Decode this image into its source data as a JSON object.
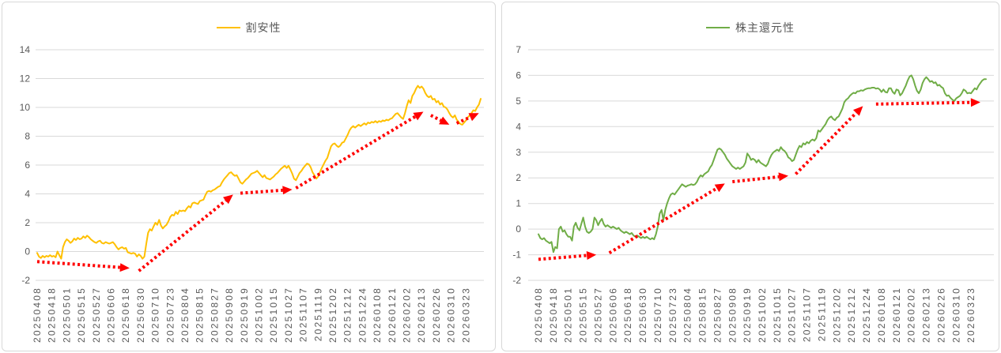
{
  "page": {
    "background": "#FFFFFF",
    "panel_border_color": "#D8D8D8"
  },
  "chart_data": [
    {
      "type": "line",
      "legend": "割安性",
      "legend_position": "top",
      "series_color": "#FFC000",
      "trend_arrow_color": "#FF0000",
      "grid_color": "#D9D9D9",
      "tick_color": "#595959",
      "grid": true,
      "ylim": [
        -2,
        14
      ],
      "y_step": 2,
      "points_per_tick": 8,
      "x_tick_labels": [
        "20250408",
        "20250418",
        "20250501",
        "20250515",
        "20250527",
        "20250606",
        "20250618",
        "20250630",
        "20250710",
        "20250723",
        "20250804",
        "20250815",
        "20250827",
        "20250908",
        "20250919",
        "20251002",
        "20251015",
        "20251027",
        "20251107",
        "20251119",
        "20251202",
        "20251212",
        "20251224",
        "20260108",
        "20260121",
        "20260202",
        "20260213",
        "20260226",
        "20260310",
        "20260323"
      ],
      "values": [
        -0.1,
        -0.35,
        -0.45,
        -0.3,
        -0.4,
        -0.3,
        -0.35,
        -0.25,
        -0.35,
        -0.3,
        -0.4,
        0,
        -0.25,
        -0.5,
        0.3,
        0.65,
        0.85,
        0.75,
        0.6,
        0.7,
        0.9,
        0.8,
        0.95,
        0.85,
        0.9,
        1.05,
        0.95,
        1.1,
        1,
        0.85,
        0.75,
        0.65,
        0.6,
        0.7,
        0.75,
        0.6,
        0.55,
        0.65,
        0.6,
        0.55,
        0.6,
        0.65,
        0.5,
        0.3,
        0.15,
        0.25,
        0.3,
        0.2,
        0.25,
        -0.05,
        -0.1,
        -0.15,
        -0.1,
        -0.15,
        -0.35,
        -0.2,
        -0.3,
        -0.5,
        -0.35,
        0.5,
        1.3,
        1.55,
        1.45,
        1.75,
        2,
        1.85,
        2.2,
        1.8,
        1.6,
        1.75,
        1.85,
        2.1,
        2.4,
        2.55,
        2.5,
        2.75,
        2.6,
        2.85,
        2.8,
        2.85,
        2.8,
        3,
        3.15,
        3.05,
        3.35,
        3.4,
        3.35,
        3.3,
        3.5,
        3.55,
        3.6,
        3.9,
        4.15,
        4.2,
        4.15,
        4.25,
        4.3,
        4.4,
        4.5,
        4.55,
        4.8,
        5,
        5.15,
        5.3,
        5.45,
        5.5,
        5.35,
        5.25,
        5.3,
        5.05,
        4.8,
        4.7,
        4.85,
        5,
        5.1,
        5.25,
        5.4,
        5.45,
        5.5,
        5.6,
        5.45,
        5.3,
        5.15,
        5.3,
        5.1,
        5.05,
        5,
        5.1,
        5.2,
        5.35,
        5.45,
        5.6,
        5.75,
        5.85,
        5.95,
        5.8,
        5.95,
        5.7,
        5.4,
        5.05,
        4.95,
        5.2,
        5.45,
        5.6,
        5.8,
        5.95,
        6.1,
        6.05,
        5.85,
        5.5,
        5.3,
        5.05,
        5.2,
        5.5,
        5.8,
        6.05,
        6.3,
        6.5,
        6.9,
        7.3,
        7.45,
        7.5,
        7.35,
        7.25,
        7.35,
        7.55,
        7.6,
        7.85,
        8.1,
        8.4,
        8.6,
        8.7,
        8.6,
        8.7,
        8.8,
        8.7,
        8.8,
        8.9,
        8.8,
        8.95,
        8.9,
        9,
        8.95,
        9.05,
        8.95,
        9.05,
        9,
        9.1,
        9.05,
        9.15,
        9.1,
        9.2,
        9.25,
        9.4,
        9.55,
        9.6,
        9.45,
        9.3,
        9.2,
        9.6,
        10.1,
        10.5,
        10.3,
        10.8,
        11,
        11.3,
        11.5,
        11.35,
        11.45,
        11.3,
        11,
        10.8,
        10.7,
        10.8,
        10.55,
        10.6,
        10.35,
        10.45,
        10.2,
        10.3,
        10.05,
        10,
        9.85,
        9.6,
        9.4,
        9.3,
        9.45,
        9.15,
        9,
        8.85,
        8.8,
        8.95,
        9.1,
        9.3,
        9.45,
        9.6,
        9.8,
        9.75,
        10,
        10.2,
        10.6
      ],
      "trend_arrows": [
        {
          "from_index": 0,
          "from_value": -0.7,
          "to_index": 50,
          "to_value": -1.15
        },
        {
          "from_index": 55,
          "from_value": -1.35,
          "to_index": 106,
          "to_value": 3.95
        },
        {
          "from_index": 110,
          "from_value": 4.05,
          "to_index": 138,
          "to_value": 4.3
        },
        {
          "from_index": 140,
          "from_value": 4.4,
          "to_index": 209,
          "to_value": 9.7
        },
        {
          "from_index": 213,
          "from_value": 9.45,
          "to_index": 223,
          "to_value": 8.8
        },
        {
          "from_index": 227,
          "from_value": 8.9,
          "to_index": 239,
          "to_value": 9.6
        }
      ]
    },
    {
      "type": "line",
      "legend": "株主還元性",
      "legend_position": "top",
      "series_color": "#70AD47",
      "trend_arrow_color": "#FF0000",
      "grid_color": "#D9D9D9",
      "tick_color": "#595959",
      "grid": true,
      "ylim": [
        -2,
        7
      ],
      "y_step": 1,
      "points_per_tick": 8,
      "x_tick_labels": [
        "20250408",
        "20250418",
        "20250501",
        "20250515",
        "20250527",
        "20250606",
        "20250618",
        "20250630",
        "20250710",
        "20250723",
        "20250804",
        "20250815",
        "20250827",
        "20250908",
        "20250919",
        "20251002",
        "20251015",
        "20251027",
        "20251107",
        "20251119",
        "20251202",
        "20251212",
        "20251224",
        "20260108",
        "20260121",
        "20260202",
        "20260213",
        "20260226",
        "20260310",
        "20260323"
      ],
      "values": [
        -0.2,
        -0.35,
        -0.4,
        -0.35,
        -0.45,
        -0.5,
        -0.55,
        -0.5,
        -0.9,
        -0.7,
        -0.75,
        0,
        0.1,
        -0.1,
        -0.05,
        -0.2,
        -0.3,
        -0.3,
        -0.45,
        0.1,
        0.25,
        0.05,
        -0.05,
        0.2,
        0.45,
        0.1,
        -0.1,
        -0.15,
        -0.1,
        0,
        0.45,
        0.35,
        0.15,
        0.3,
        0.4,
        0.2,
        0.1,
        0.15,
        0.1,
        0.05,
        0.1,
        0.05,
        0,
        0.05,
        -0.05,
        -0.1,
        -0.15,
        -0.1,
        -0.15,
        -0.2,
        -0.15,
        -0.25,
        -0.3,
        -0.25,
        -0.3,
        -0.35,
        -0.3,
        -0.35,
        -0.3,
        -0.35,
        -0.4,
        -0.35,
        -0.4,
        -0.2,
        0.1,
        0.6,
        0.75,
        0.35,
        0.75,
        1,
        1.2,
        1.35,
        1.4,
        1.35,
        1.45,
        1.55,
        1.65,
        1.75,
        1.7,
        1.65,
        1.7,
        1.72,
        1.75,
        1.72,
        1.75,
        1.85,
        2,
        2.1,
        2.05,
        2.15,
        2.2,
        2.25,
        2.4,
        2.5,
        2.7,
        2.9,
        3.1,
        3.15,
        3.1,
        3,
        2.9,
        2.75,
        2.65,
        2.55,
        2.45,
        2.4,
        2.35,
        2.4,
        2.35,
        2.4,
        2.45,
        2.6,
        2.95,
        2.85,
        2.7,
        2.75,
        2.7,
        2.6,
        2.7,
        2.6,
        2.55,
        2.5,
        2.45,
        2.55,
        2.75,
        2.9,
        3,
        3.05,
        3.1,
        3.05,
        3.2,
        3.1,
        3.05,
        2.95,
        2.8,
        2.75,
        2.65,
        2.7,
        2.9,
        3.1,
        3.25,
        3.2,
        3.35,
        3.3,
        3.4,
        3.35,
        3.45,
        3.5,
        3.45,
        3.55,
        3.85,
        3.8,
        3.9,
        4,
        4.1,
        4.25,
        4.35,
        4.4,
        4.3,
        4.25,
        4.35,
        4.4,
        4.55,
        4.7,
        4.95,
        5.05,
        5.1,
        5.2,
        5.27,
        5.32,
        5.3,
        5.38,
        5.38,
        5.42,
        5.4,
        5.45,
        5.48,
        5.5,
        5.5,
        5.52,
        5.52,
        5.48,
        5.5,
        5.45,
        5.35,
        5.45,
        5.35,
        5.33,
        5.5,
        5.5,
        5.35,
        5.28,
        5.45,
        5.42,
        5.22,
        5.3,
        5.45,
        5.6,
        5.8,
        5.95,
        6,
        5.85,
        5.6,
        5.4,
        5.3,
        5.45,
        5.7,
        5.85,
        5.93,
        5.85,
        5.75,
        5.78,
        5.7,
        5.73,
        5.6,
        5.63,
        5.55,
        5.5,
        5.3,
        5.2,
        5.22,
        5.12,
        5.05,
        5,
        5.1,
        5.15,
        5.2,
        5.3,
        5.45,
        5.4,
        5.3,
        5.32,
        5.3,
        5.4,
        5.5,
        5.45,
        5.6,
        5.7,
        5.8,
        5.85,
        5.85
      ],
      "trend_arrows": [
        {
          "from_index": 0,
          "from_value": -1.18,
          "to_index": 31,
          "to_value": -1.0
        },
        {
          "from_index": 38,
          "from_value": -0.93,
          "to_index": 100,
          "to_value": 1.78
        },
        {
          "from_index": 104,
          "from_value": 1.85,
          "to_index": 134,
          "to_value": 2.08
        },
        {
          "from_index": 138,
          "from_value": 2.15,
          "to_index": 174,
          "to_value": 4.8
        },
        {
          "from_index": 181,
          "from_value": 4.88,
          "to_index": 237,
          "to_value": 4.95
        }
      ]
    }
  ]
}
